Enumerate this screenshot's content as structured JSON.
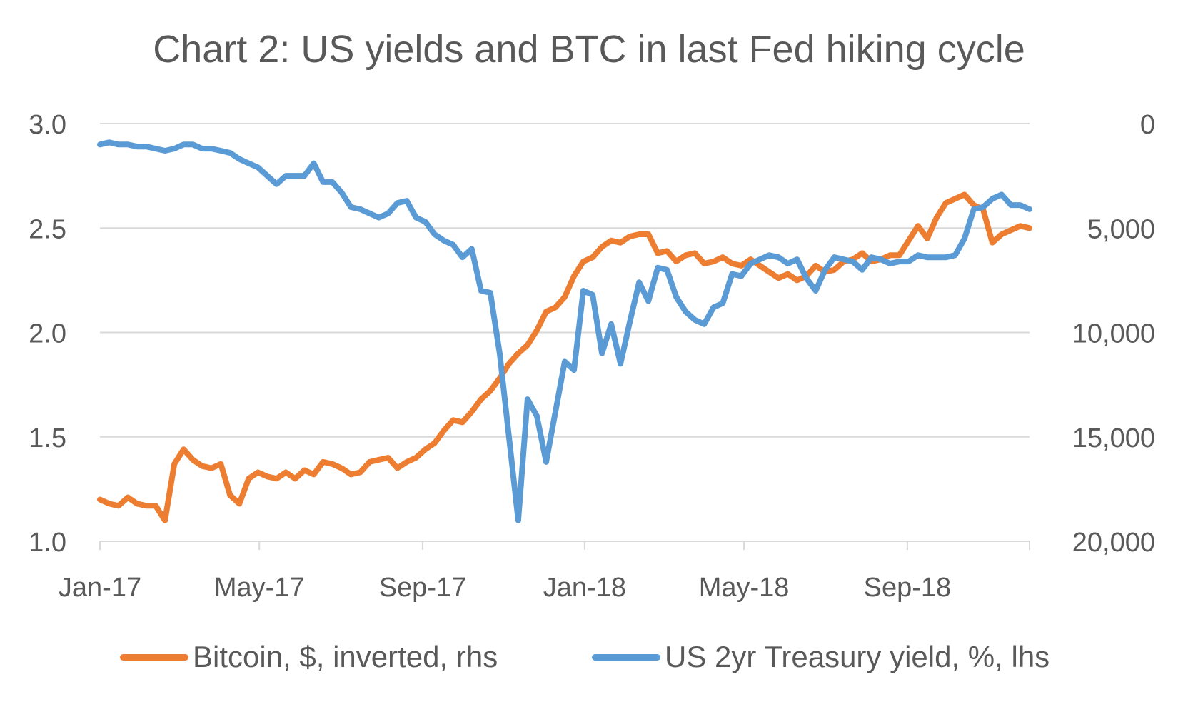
{
  "chart_data": {
    "type": "line",
    "title": "Chart 2: US yields and BTC in last Fed hiking cycle",
    "x_ticks": [
      "Jan-17",
      "May-17",
      "Sep-17",
      "Jan-18",
      "May-18",
      "Sep-18"
    ],
    "y_left": {
      "ticks": [
        "1.0",
        "1.5",
        "2.0",
        "2.5",
        "3.0"
      ],
      "min": 1.0,
      "max": 3.0
    },
    "y_right": {
      "ticks": [
        "20,000",
        "15,000",
        "10,000",
        "5,000",
        "0"
      ],
      "min": 0,
      "max": 20000,
      "inverted": true
    },
    "grid": true,
    "legend_position": "bottom",
    "series": [
      {
        "name": "Bitcoin, $, inverted, rhs",
        "axis": "right",
        "color": "#ED7D31",
        "x": [
          "2017-01-01",
          "2017-01-08",
          "2017-01-15",
          "2017-01-22",
          "2017-01-29",
          "2017-02-05",
          "2017-02-12",
          "2017-02-19",
          "2017-02-26",
          "2017-03-05",
          "2017-03-12",
          "2017-03-19",
          "2017-03-26",
          "2017-04-02",
          "2017-04-09",
          "2017-04-16",
          "2017-04-23",
          "2017-04-30",
          "2017-05-07",
          "2017-05-14",
          "2017-05-21",
          "2017-05-28",
          "2017-06-04",
          "2017-06-11",
          "2017-06-18",
          "2017-06-25",
          "2017-07-02",
          "2017-07-09",
          "2017-07-16",
          "2017-07-23",
          "2017-07-30",
          "2017-08-06",
          "2017-08-13",
          "2017-08-20",
          "2017-08-27",
          "2017-09-03",
          "2017-09-10",
          "2017-09-17",
          "2017-09-24",
          "2017-10-01",
          "2017-10-08",
          "2017-10-15",
          "2017-10-22",
          "2017-10-29",
          "2017-11-05",
          "2017-11-12",
          "2017-11-19",
          "2017-11-26",
          "2017-12-03",
          "2017-12-10",
          "2017-12-17",
          "2017-12-24",
          "2017-12-31",
          "2018-01-07",
          "2018-01-14",
          "2018-01-21",
          "2018-01-28",
          "2018-02-04",
          "2018-02-11",
          "2018-02-18",
          "2018-02-25",
          "2018-03-04",
          "2018-03-11",
          "2018-03-18",
          "2018-03-25",
          "2018-04-01",
          "2018-04-08",
          "2018-04-15",
          "2018-04-22",
          "2018-04-29",
          "2018-05-06",
          "2018-05-13",
          "2018-05-20",
          "2018-05-27",
          "2018-06-03",
          "2018-06-10",
          "2018-06-17",
          "2018-06-24",
          "2018-07-01",
          "2018-07-08",
          "2018-07-15",
          "2018-07-22",
          "2018-07-29",
          "2018-08-05",
          "2018-08-12",
          "2018-08-19",
          "2018-08-26",
          "2018-09-02",
          "2018-09-09",
          "2018-09-16",
          "2018-09-23",
          "2018-09-30",
          "2018-10-07",
          "2018-10-14",
          "2018-10-21",
          "2018-10-28",
          "2018-11-04",
          "2018-11-11",
          "2018-11-18",
          "2018-11-25",
          "2018-12-02"
        ],
        "values": [
          18000,
          18200,
          18300,
          17900,
          18200,
          18300,
          18300,
          19000,
          16300,
          15600,
          16100,
          16400,
          16500,
          16300,
          17800,
          18200,
          17000,
          16700,
          16900,
          17000,
          16700,
          17000,
          16600,
          16800,
          16200,
          16300,
          16500,
          16800,
          16700,
          16200,
          16100,
          16000,
          16500,
          16200,
          16000,
          15600,
          15300,
          14700,
          14200,
          14300,
          13800,
          13200,
          12800,
          12200,
          11500,
          11000,
          10600,
          9900,
          9000,
          8800,
          8300,
          7300,
          6600,
          6400,
          5900,
          5600,
          5700,
          5400,
          5300,
          5300,
          6200,
          6100,
          6600,
          6300,
          6200,
          6700,
          6600,
          6400,
          6700,
          6800,
          6500,
          6800,
          7100,
          7400,
          7200,
          7500,
          7300,
          6800,
          7100,
          7000,
          6600,
          6500,
          6200,
          6600,
          6500,
          6300,
          6300,
          5600,
          4900,
          5500,
          4500,
          3800,
          3600,
          3400,
          3900,
          4100,
          5700,
          5300,
          5100,
          4900,
          5000
        ],
        "values_note_type": "bitcoin_usd"
      },
      {
        "name": "US 2yr Treasury yield, %, lhs",
        "axis": "left",
        "color": "#5B9BD5",
        "x": [
          "2017-01-01",
          "2017-01-08",
          "2017-01-15",
          "2017-01-22",
          "2017-01-29",
          "2017-02-05",
          "2017-02-12",
          "2017-02-19",
          "2017-02-26",
          "2017-03-05",
          "2017-03-12",
          "2017-03-19",
          "2017-03-26",
          "2017-04-02",
          "2017-04-09",
          "2017-04-16",
          "2017-04-23",
          "2017-04-30",
          "2017-05-07",
          "2017-05-14",
          "2017-05-21",
          "2017-05-28",
          "2017-06-04",
          "2017-06-11",
          "2017-06-18",
          "2017-06-25",
          "2017-07-02",
          "2017-07-09",
          "2017-07-16",
          "2017-07-23",
          "2017-07-30",
          "2017-08-06",
          "2017-08-13",
          "2017-08-20",
          "2017-08-27",
          "2017-09-03",
          "2017-09-10",
          "2017-09-17",
          "2017-09-24",
          "2017-10-01",
          "2017-10-08",
          "2017-10-15",
          "2017-10-22",
          "2017-10-29",
          "2017-11-05",
          "2017-11-12",
          "2017-11-19",
          "2017-11-26",
          "2017-12-03",
          "2017-12-10",
          "2017-12-17",
          "2017-12-24",
          "2017-12-31",
          "2018-01-07",
          "2018-01-14",
          "2018-01-21",
          "2018-01-28",
          "2018-02-04",
          "2018-02-11",
          "2018-02-18",
          "2018-02-25",
          "2018-03-04",
          "2018-03-11",
          "2018-03-18",
          "2018-03-25",
          "2018-04-01",
          "2018-04-08",
          "2018-04-15",
          "2018-04-22",
          "2018-04-29",
          "2018-05-06",
          "2018-05-13",
          "2018-05-20",
          "2018-05-27",
          "2018-06-03",
          "2018-06-10",
          "2018-06-17",
          "2018-06-24",
          "2018-07-01",
          "2018-07-08",
          "2018-07-15",
          "2018-07-22",
          "2018-07-29",
          "2018-08-05",
          "2018-08-12",
          "2018-08-19",
          "2018-08-26",
          "2018-09-02",
          "2018-09-09",
          "2018-09-16",
          "2018-09-23",
          "2018-09-30",
          "2018-10-07",
          "2018-10-14",
          "2018-10-21",
          "2018-10-28",
          "2018-11-04",
          "2018-11-11",
          "2018-11-18",
          "2018-11-25",
          "2018-12-02"
        ],
        "values": [
          2.9,
          2.91,
          2.9,
          2.9,
          2.89,
          2.89,
          2.88,
          2.87,
          2.88,
          2.9,
          2.9,
          2.88,
          2.88,
          2.87,
          2.86,
          2.83,
          2.81,
          2.79,
          2.75,
          2.71,
          2.75,
          2.75,
          2.75,
          2.81,
          2.72,
          2.72,
          2.67,
          2.6,
          2.59,
          2.57,
          2.55,
          2.57,
          2.62,
          2.63,
          2.55,
          2.53,
          2.47,
          2.44,
          2.42,
          2.36,
          2.4,
          2.2,
          2.19,
          1.9,
          1.5,
          1.1,
          1.68,
          1.6,
          1.38,
          1.62,
          1.86,
          1.82,
          2.2,
          2.18,
          1.9,
          2.04,
          1.85,
          2.05,
          2.24,
          2.15,
          2.31,
          2.3,
          2.17,
          2.1,
          2.06,
          2.04,
          2.12,
          2.14,
          2.28,
          2.27,
          2.33,
          2.35,
          2.37,
          2.36,
          2.33,
          2.35,
          2.26,
          2.2,
          2.3,
          2.36,
          2.35,
          2.34,
          2.3,
          2.36,
          2.35,
          2.33,
          2.34,
          2.34,
          2.37,
          2.36,
          2.36,
          2.36,
          2.37,
          2.45,
          2.59,
          2.6,
          2.64,
          2.66,
          2.61,
          2.61,
          2.59
        ],
        "values_note_type": "yield_percent"
      }
    ]
  }
}
